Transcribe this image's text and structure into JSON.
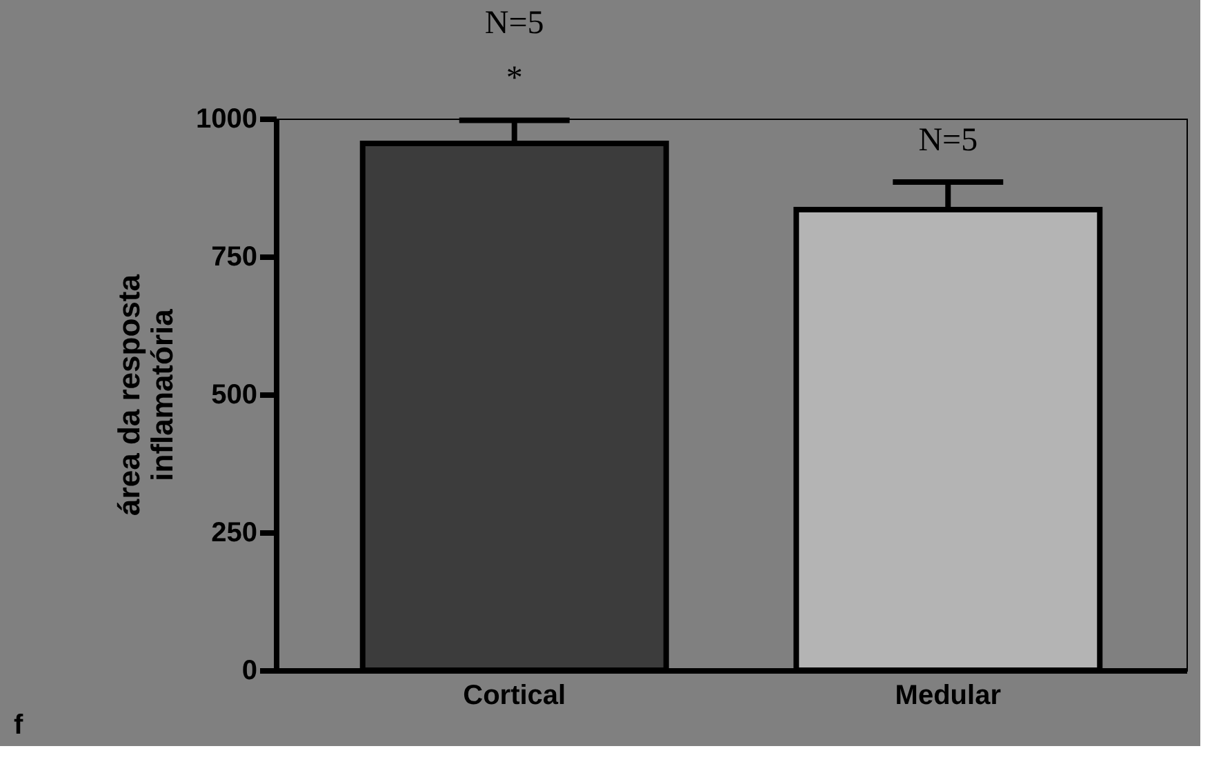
{
  "chart_data": {
    "type": "bar",
    "categories": [
      "Cortical",
      "Medular"
    ],
    "values": [
      955,
      835
    ],
    "errors": [
      [
        955,
        997
      ],
      [
        835,
        885
      ]
    ],
    "colors": [
      "#3c3c3c",
      "#b4b4b4"
    ],
    "ylabel": "área da resposta\ninflamatória",
    "ylim": [
      0,
      1000
    ],
    "yticks": [
      0,
      250,
      500,
      750,
      1000
    ],
    "grid": false,
    "legend": false,
    "annotations": [
      {
        "text": "N=5",
        "x": "Cortical",
        "y": 997
      },
      {
        "text": "*",
        "x": "Cortical",
        "y": 997
      },
      {
        "text": "N=5",
        "x": "Medular",
        "y": 885
      },
      "f"
    ]
  }
}
